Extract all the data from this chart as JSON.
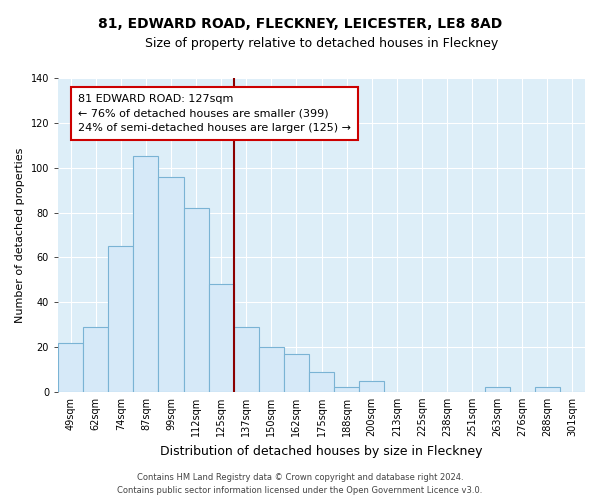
{
  "title": "81, EDWARD ROAD, FLECKNEY, LEICESTER, LE8 8AD",
  "subtitle": "Size of property relative to detached houses in Fleckney",
  "xlabel": "Distribution of detached houses by size in Fleckney",
  "ylabel": "Number of detached properties",
  "bar_labels": [
    "49sqm",
    "62sqm",
    "74sqm",
    "87sqm",
    "99sqm",
    "112sqm",
    "125sqm",
    "137sqm",
    "150sqm",
    "162sqm",
    "175sqm",
    "188sqm",
    "200sqm",
    "213sqm",
    "225sqm",
    "238sqm",
    "251sqm",
    "263sqm",
    "276sqm",
    "288sqm",
    "301sqm"
  ],
  "bar_heights": [
    22,
    29,
    65,
    105,
    96,
    82,
    48,
    29,
    20,
    17,
    9,
    2,
    5,
    0,
    0,
    0,
    0,
    2,
    0,
    2,
    0
  ],
  "bar_color": "#d6e9f8",
  "bar_edge_color": "#7ab3d4",
  "vline_color": "#8b0000",
  "annotation_title": "81 EDWARD ROAD: 127sqm",
  "annotation_line1": "← 76% of detached houses are smaller (399)",
  "annotation_line2": "24% of semi-detached houses are larger (125) →",
  "annotation_box_color": "#ffffff",
  "annotation_box_edge": "#cc0000",
  "bg_color": "#ddeef8",
  "grid_color": "#c0d8e8",
  "ylim": [
    0,
    140
  ],
  "yticks": [
    0,
    20,
    40,
    60,
    80,
    100,
    120,
    140
  ],
  "footer1": "Contains HM Land Registry data © Crown copyright and database right 2024.",
  "footer2": "Contains public sector information licensed under the Open Government Licence v3.0.",
  "title_fontsize": 10,
  "subtitle_fontsize": 9,
  "xlabel_fontsize": 9,
  "ylabel_fontsize": 8,
  "annotation_fontsize": 8,
  "tick_fontsize": 7,
  "footer_fontsize": 6
}
